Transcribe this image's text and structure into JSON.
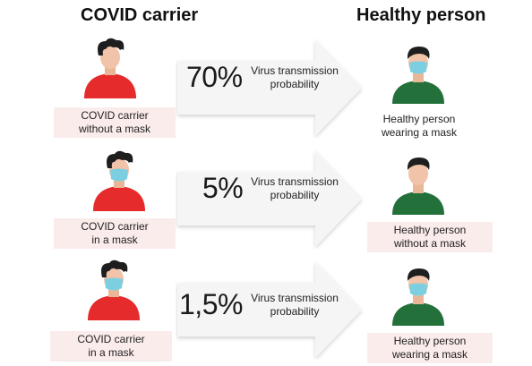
{
  "headers": {
    "carrier": "COVID carrier",
    "healthy": "Healthy person"
  },
  "rows": [
    {
      "percent": "70%",
      "probability_line1": "Virus transmission",
      "probability_line2": "probability",
      "carrier_line1": "COVID carrier",
      "carrier_line2": "without a mask",
      "healthy_line1": "Healthy person",
      "healthy_line2": "wearing a mask"
    },
    {
      "percent": "5%",
      "probability_line1": "Virus transmission",
      "probability_line2": "probability",
      "carrier_line1": "COVID carrier",
      "carrier_line2": "in a mask",
      "healthy_line1": "Healthy person",
      "healthy_line2": "without a mask"
    },
    {
      "percent": "1,5%",
      "probability_line1": "Virus transmission",
      "probability_line2": "probability",
      "carrier_line1": "COVID carrier",
      "carrier_line2": "in a mask",
      "healthy_line1": "Healthy person",
      "healthy_line2": "wearing a mask"
    }
  ],
  "icons": {
    "carrier_person": "person-red-shirt-icon",
    "healthy_person": "person-green-shirt-icon",
    "mask": "face-mask-icon",
    "arrow": "arrow-right-icon"
  },
  "colors": {
    "carrier_shirt": "#e52b2b",
    "healthy_shirt": "#23703a",
    "mask": "#7ccfe0",
    "hair": "#1e1e1e",
    "skin": "#f1c3a8",
    "caption_bg": "#fbecec",
    "arrow_fill": "#f5f5f5"
  }
}
